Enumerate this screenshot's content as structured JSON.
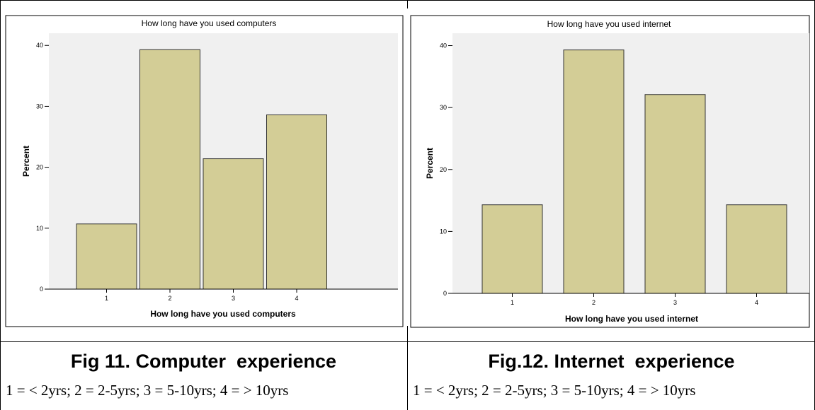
{
  "chart_data": [
    {
      "type": "bar",
      "title": "How long have you used computers",
      "xlabel": "How long have you used computers",
      "ylabel": "Percent",
      "categories": [
        "1",
        "2",
        "3",
        "4"
      ],
      "values": [
        10.7,
        39.3,
        21.4,
        28.6
      ],
      "ylim": [
        0,
        42
      ],
      "yticks": [
        0,
        10,
        20,
        30,
        40
      ],
      "grid": false,
      "bar_color": "#d3cd96",
      "plot_background": "#f0f0f0"
    },
    {
      "type": "bar",
      "title": "How long have you used internet",
      "xlabel": "How long have you used internet",
      "ylabel": "Percent",
      "categories": [
        "1",
        "2",
        "3",
        "4"
      ],
      "values": [
        14.3,
        39.3,
        32.1,
        14.3
      ],
      "ylim": [
        0,
        42
      ],
      "yticks": [
        0,
        10,
        20,
        30,
        40
      ],
      "grid": false,
      "bar_color": "#d3cd96",
      "plot_background": "#f0f0f0"
    }
  ],
  "captions": {
    "left_title": "Fig 11. Computer  experience",
    "left_legend": "1 = < 2yrs; 2 = 2-5yrs; 3 = 5-10yrs; 4 = > 10yrs",
    "right_title": "Fig.12. Internet  experience",
    "right_legend": "1 = < 2yrs; 2 = 2-5yrs; 3 = 5-10yrs; 4 = > 10yrs"
  }
}
